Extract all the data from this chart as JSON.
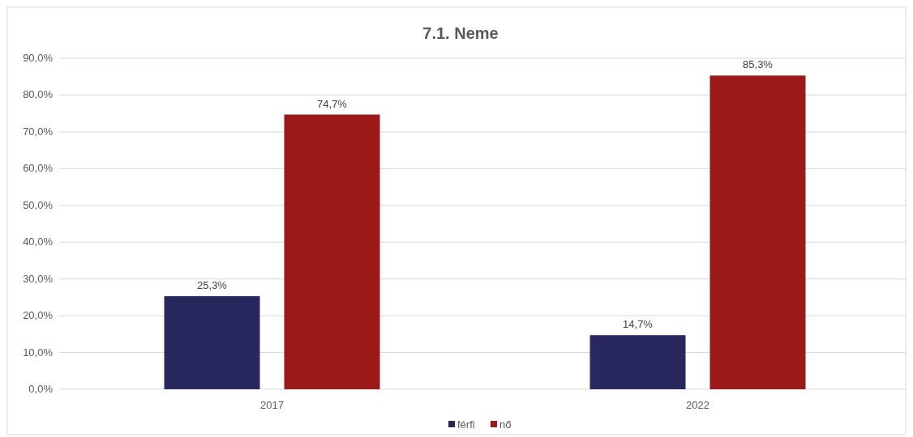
{
  "chart_data": {
    "type": "bar",
    "title": "7.1. Neme",
    "categories": [
      "2017",
      "2022"
    ],
    "series": [
      {
        "name": "férfi",
        "color": "#28285e",
        "values": [
          25.3,
          14.7
        ],
        "value_labels": [
          "25,3%",
          "14,7%"
        ]
      },
      {
        "name": "nő",
        "color": "#9b1916",
        "values": [
          74.7,
          85.3
        ],
        "value_labels": [
          "74,7%",
          "85,3%"
        ]
      }
    ],
    "ylim": [
      0,
      90
    ],
    "yticks": [
      {
        "value": 0,
        "label": "0,0%"
      },
      {
        "value": 10,
        "label": "10,0%"
      },
      {
        "value": 20,
        "label": "20,0%"
      },
      {
        "value": 30,
        "label": "30,0%"
      },
      {
        "value": 40,
        "label": "40,0%"
      },
      {
        "value": 50,
        "label": "50,0%"
      },
      {
        "value": 60,
        "label": "60,0%"
      },
      {
        "value": 70,
        "label": "70,0%"
      },
      {
        "value": 80,
        "label": "80,0%"
      },
      {
        "value": 90,
        "label": "90,0%"
      }
    ],
    "grid": "y",
    "legend": "bottom"
  }
}
